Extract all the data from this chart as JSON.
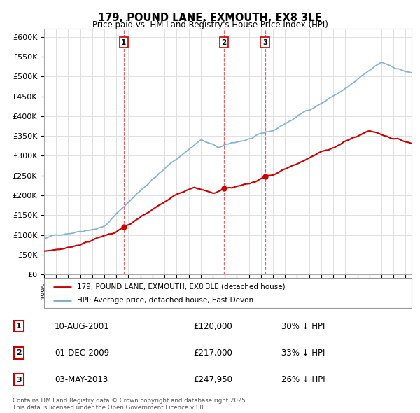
{
  "title": "179, POUND LANE, EXMOUTH, EX8 3LE",
  "subtitle": "Price paid vs. HM Land Registry's House Price Index (HPI)",
  "ylim": [
    0,
    620000
  ],
  "yticks": [
    0,
    50000,
    100000,
    150000,
    200000,
    250000,
    300000,
    350000,
    400000,
    450000,
    500000,
    550000,
    600000
  ],
  "sale_dates_num": [
    2001.61,
    2009.92,
    2013.34
  ],
  "sale_prices": [
    120000,
    217000,
    247950
  ],
  "sale_labels": [
    "1",
    "2",
    "3"
  ],
  "sale_color": "#cc0000",
  "hpi_color": "#7aabcf",
  "grid_color": "#e0e0e0",
  "background_color": "#ffffff",
  "legend_entries": [
    "179, POUND LANE, EXMOUTH, EX8 3LE (detached house)",
    "HPI: Average price, detached house, East Devon"
  ],
  "table_rows": [
    {
      "num": "1",
      "date": "10-AUG-2001",
      "price": "£120,000",
      "hpi": "30% ↓ HPI"
    },
    {
      "num": "2",
      "date": "01-DEC-2009",
      "price": "£217,000",
      "hpi": "33% ↓ HPI"
    },
    {
      "num": "3",
      "date": "03-MAY-2013",
      "price": "£247,950",
      "hpi": "26% ↓ HPI"
    }
  ],
  "footer": "Contains HM Land Registry data © Crown copyright and database right 2025.\nThis data is licensed under the Open Government Licence v3.0.",
  "xmin": 1995.0,
  "xmax": 2025.5
}
